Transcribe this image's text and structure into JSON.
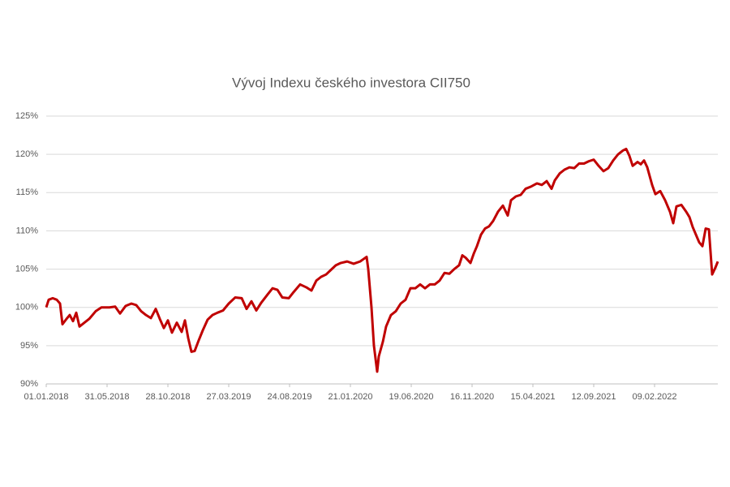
{
  "chart_data": {
    "type": "line",
    "title": "Vývoj Indexu českého investora CII750",
    "x": [
      "01.01.2018",
      "07.01.2018",
      "17.01.2018",
      "27.01.2018",
      "04.02.2018",
      "10.02.2018",
      "20.02.2018",
      "28.02.2018",
      "08.03.2018",
      "16.03.2018",
      "24.03.2018",
      "05.04.2018",
      "17.04.2018",
      "03.05.2018",
      "17.05.2018",
      "06.06.2018",
      "20.06.2018",
      "02.07.2018",
      "16.07.2018",
      "30.07.2018",
      "11.08.2018",
      "23.08.2018",
      "04.09.2018",
      "16.09.2018",
      "28.09.2018",
      "08.10.2018",
      "18.10.2018",
      "28.10.2018",
      "07.11.2018",
      "19.11.2018",
      "01.12.2018",
      "09.12.2018",
      "17.12.2018",
      "25.12.2018",
      "02.01.2019",
      "12.01.2019",
      "22.01.2019",
      "03.02.2019",
      "15.02.2019",
      "27.02.2019",
      "13.03.2019",
      "27.03.2019",
      "12.04.2019",
      "28.04.2019",
      "10.05.2019",
      "22.05.2019",
      "03.06.2019",
      "15.06.2019",
      "01.07.2019",
      "13.07.2019",
      "25.07.2019",
      "06.08.2019",
      "22.08.2019",
      "03.09.2019",
      "19.09.2019",
      "05.10.2019",
      "17.10.2019",
      "29.10.2019",
      "10.11.2019",
      "22.11.2019",
      "04.12.2019",
      "16.12.2019",
      "28.12.2019",
      "13.01.2020",
      "29.01.2020",
      "14.02.2020",
      "22.02.2020",
      "01.03.2020",
      "05.03.2020",
      "13.03.2020",
      "19.03.2020",
      "27.03.2020",
      "31.03.2020",
      "10.04.2020",
      "18.04.2020",
      "30.04.2020",
      "12.05.2020",
      "24.05.2020",
      "05.06.2020",
      "17.06.2020",
      "29.06.2020",
      "11.07.2020",
      "23.07.2020",
      "04.08.2020",
      "16.08.2020",
      "28.08.2020",
      "09.09.2020",
      "21.09.2020",
      "03.10.2020",
      "15.10.2020",
      "23.10.2020",
      "31.10.2020",
      "12.11.2020",
      "20.11.2020",
      "28.11.2020",
      "08.12.2020",
      "18.12.2020",
      "28.12.2020",
      "07.01.2021",
      "19.01.2021",
      "31.01.2021",
      "12.02.2021",
      "20.02.2021",
      "04.03.2021",
      "16.03.2021",
      "28.03.2021",
      "11.04.2021",
      "25.04.2021",
      "07.05.2021",
      "19.05.2021",
      "31.05.2021",
      "08.06.2021",
      "20.06.2021",
      "02.07.2021",
      "14.07.2021",
      "26.07.2021",
      "07.08.2021",
      "19.08.2021",
      "31.08.2021",
      "12.09.2021",
      "24.09.2021",
      "06.10.2021",
      "18.10.2021",
      "30.10.2021",
      "11.11.2021",
      "23.11.2021",
      "01.12.2021",
      "09.12.2021",
      "17.12.2021",
      "29.12.2021",
      "06.01.2022",
      "14.01.2022",
      "22.01.2022",
      "03.02.2022",
      "11.02.2022",
      "23.02.2022",
      "07.03.2022",
      "19.03.2022",
      "27.03.2022",
      "04.04.2022",
      "16.04.2022",
      "28.04.2022",
      "06.05.2022",
      "14.05.2022",
      "22.05.2022",
      "30.05.2022",
      "07.06.2022",
      "15.06.2022",
      "23.06.2022",
      "01.07.2022",
      "09.07.2022",
      "15.07.2022"
    ],
    "series": [
      {
        "name": "CII750",
        "color": "#c00000",
        "values": [
          100,
          101,
          101.2,
          101,
          100.5,
          97.8,
          98.5,
          99,
          98.2,
          99.3,
          97.5,
          98,
          98.5,
          99.5,
          100,
          100,
          100.1,
          99.2,
          100.2,
          100.5,
          100.3,
          99.5,
          99,
          98.6,
          99.8,
          98.5,
          97.3,
          98.3,
          96.7,
          98,
          96.8,
          98.3,
          96,
          94.2,
          94.3,
          95.7,
          97,
          98.4,
          99,
          99.3,
          99.6,
          100.5,
          101.3,
          101.2,
          99.8,
          100.8,
          99.6,
          100.6,
          101.7,
          102.5,
          102.3,
          101.3,
          101.2,
          102,
          103,
          102.6,
          102.2,
          103.5,
          104,
          104.3,
          104.9,
          105.5,
          105.8,
          106,
          105.7,
          106,
          106.3,
          106.6,
          105,
          100,
          95,
          91.6,
          93.6,
          95.5,
          97.5,
          99,
          99.5,
          100.5,
          101,
          102.5,
          102.5,
          103,
          102.5,
          103,
          103,
          103.5,
          104.5,
          104.4,
          105,
          105.5,
          106.8,
          106.5,
          105.8,
          107,
          108,
          109.5,
          110.3,
          110.6,
          111.3,
          112.5,
          113.3,
          112,
          114,
          114.5,
          114.7,
          115.5,
          115.8,
          116.2,
          116,
          116.5,
          115.5,
          116.6,
          117.5,
          118,
          118.3,
          118.2,
          118.8,
          118.8,
          119.1,
          119.3,
          118.5,
          117.8,
          118.2,
          119.2,
          120,
          120.5,
          120.7,
          119.8,
          118.5,
          119,
          118.7,
          119.2,
          118.3,
          116,
          114.8,
          115.2,
          114,
          112.5,
          111,
          113.2,
          113.4,
          112.5,
          111.8,
          110.5,
          109.5,
          108.5,
          108,
          110.3,
          110.2,
          104.3,
          105.2,
          106
        ]
      }
    ],
    "xlim": [
      "01.01.2018",
      "15.07.2022"
    ],
    "xticks": [
      "01.01.2018",
      "31.05.2018",
      "28.10.2018",
      "27.03.2019",
      "24.08.2019",
      "21.01.2020",
      "19.06.2020",
      "16.11.2020",
      "15.04.2021",
      "12.09.2021",
      "09.02.2022"
    ],
    "ylim": [
      90,
      125
    ],
    "yticks": [
      {
        "value": 90,
        "label": "90%"
      },
      {
        "value": 95,
        "label": "95%"
      },
      {
        "value": 100,
        "label": "100%"
      },
      {
        "value": 105,
        "label": "105%"
      },
      {
        "value": 110,
        "label": "110%"
      },
      {
        "value": 115,
        "label": "115%"
      },
      {
        "value": 120,
        "label": "120%"
      },
      {
        "value": 125,
        "label": "125%"
      }
    ],
    "grid": true
  }
}
